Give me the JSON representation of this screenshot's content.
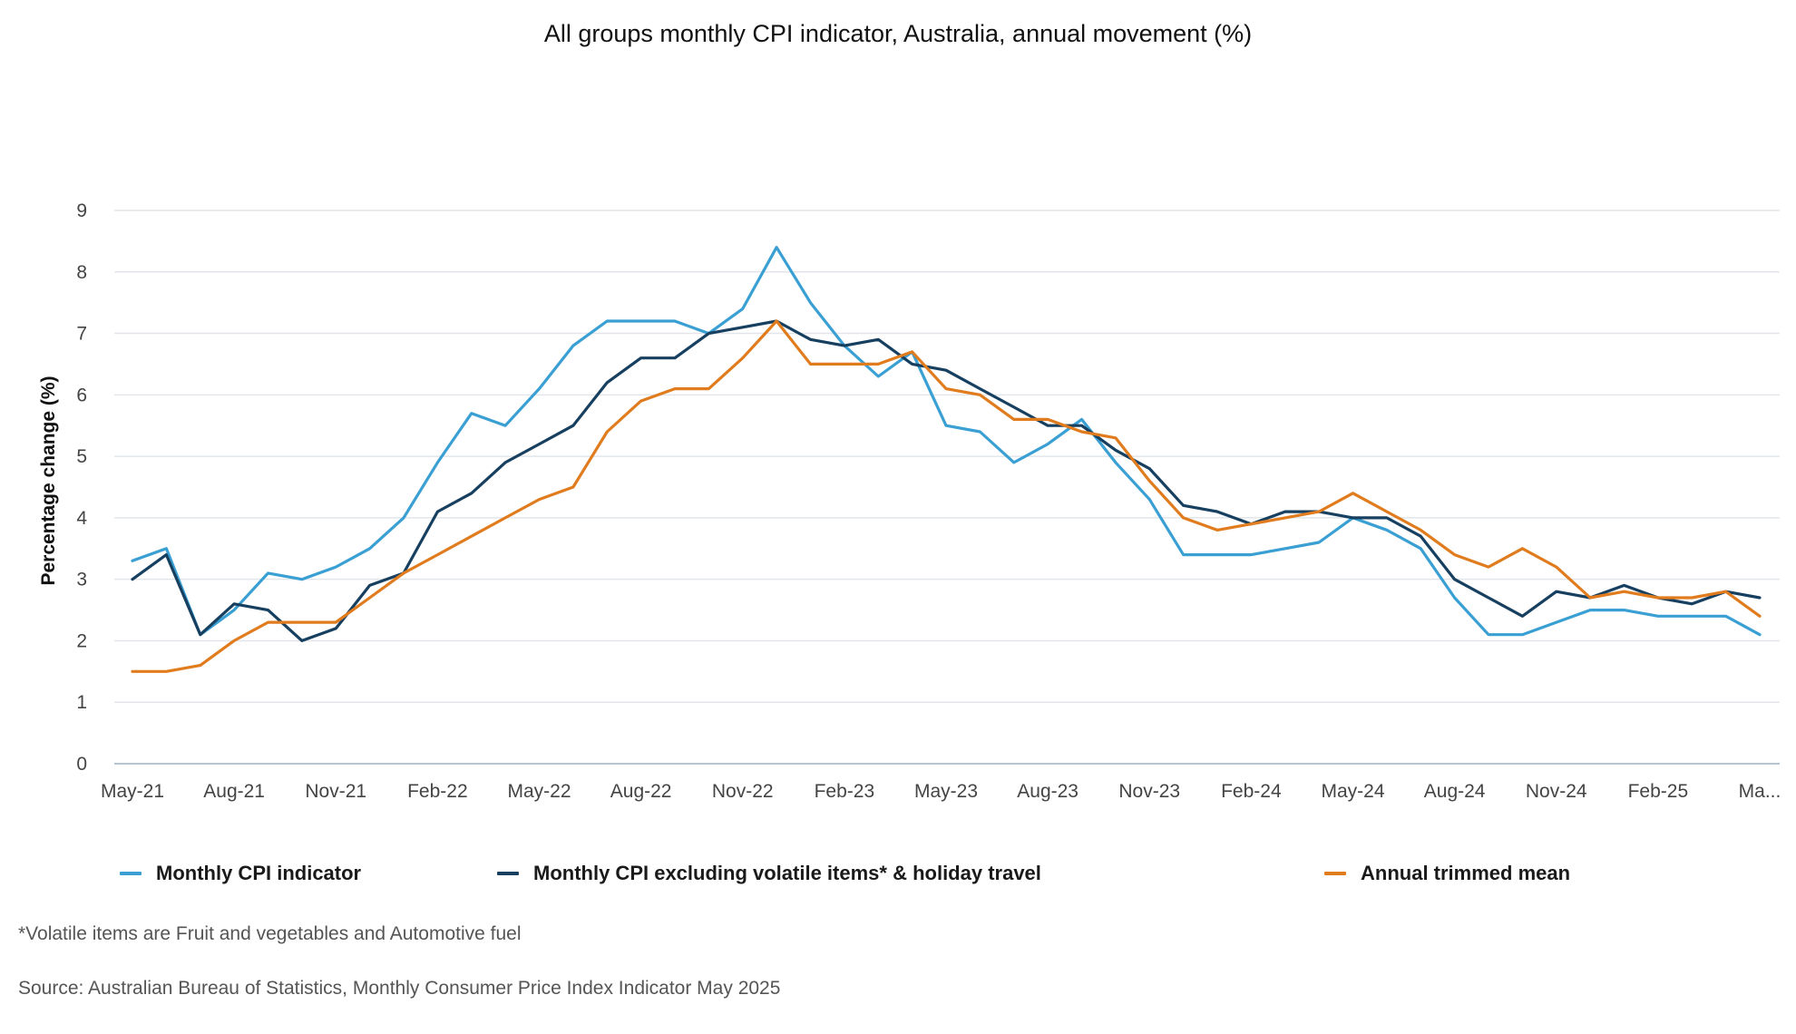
{
  "colors": {
    "monthly_cpi": "#3a9fd3",
    "excluding": "#173f5f",
    "trimmed_mean": "#e07c1e",
    "grid": "#e2e6ea",
    "axis": "#b7c6d3",
    "tick_text": "#444444"
  },
  "footnotes": {
    "volatile": "*Volatile items are Fruit and vegetables and Automotive fuel",
    "source": "Source: Australian Bureau of Statistics, Monthly Consumer Price Index Indicator May 2025"
  },
  "chart_data": {
    "type": "line",
    "title": "All groups monthly CPI indicator, Australia, annual movement (%)",
    "xlabel": "",
    "ylabel": "Percentage change (%)",
    "ylim": [
      0,
      9
    ],
    "yticks": [
      0,
      1,
      2,
      3,
      4,
      5,
      6,
      7,
      8,
      9
    ],
    "grid": true,
    "legend_position": "bottom",
    "x": [
      "May-21",
      "Jun-21",
      "Jul-21",
      "Aug-21",
      "Sep-21",
      "Oct-21",
      "Nov-21",
      "Dec-21",
      "Jan-22",
      "Feb-22",
      "Mar-22",
      "Apr-22",
      "May-22",
      "Jun-22",
      "Jul-22",
      "Aug-22",
      "Sep-22",
      "Oct-22",
      "Nov-22",
      "Dec-22",
      "Jan-23",
      "Feb-23",
      "Mar-23",
      "Apr-23",
      "May-23",
      "Jun-23",
      "Jul-23",
      "Aug-23",
      "Sep-23",
      "Oct-23",
      "Nov-23",
      "Dec-23",
      "Jan-24",
      "Feb-24",
      "Mar-24",
      "Apr-24",
      "May-24",
      "Jun-24",
      "Jul-24",
      "Aug-24",
      "Sep-24",
      "Oct-24",
      "Nov-24",
      "Dec-24",
      "Jan-25",
      "Feb-25",
      "Mar-25",
      "Apr-25",
      "May-25"
    ],
    "tick_labels": [
      "May-21",
      "Aug-21",
      "Nov-21",
      "Feb-22",
      "May-22",
      "Aug-22",
      "Nov-22",
      "Feb-23",
      "May-23",
      "Aug-23",
      "Nov-23",
      "Feb-24",
      "May-24",
      "Aug-24",
      "Nov-24",
      "Feb-25",
      "Ma..."
    ],
    "tick_indices": [
      0,
      3,
      6,
      9,
      12,
      15,
      18,
      21,
      24,
      27,
      30,
      33,
      36,
      39,
      42,
      45,
      48
    ],
    "series": [
      {
        "name": "Monthly CPI indicator",
        "values": [
          3.3,
          3.5,
          2.1,
          2.5,
          3.1,
          3.0,
          3.2,
          3.5,
          4.0,
          4.9,
          5.7,
          5.5,
          6.1,
          6.8,
          7.2,
          7.2,
          7.2,
          7.0,
          7.4,
          8.4,
          7.5,
          6.8,
          6.3,
          6.7,
          5.5,
          5.4,
          4.9,
          5.2,
          5.6,
          4.9,
          4.3,
          3.4,
          3.4,
          3.4,
          3.5,
          3.6,
          4.0,
          3.8,
          3.5,
          2.7,
          2.1,
          2.1,
          2.3,
          2.5,
          2.5,
          2.4,
          2.4,
          2.4,
          2.1
        ]
      },
      {
        "name": "Monthly CPI excluding volatile items* & holiday travel",
        "values": [
          3.0,
          3.4,
          2.1,
          2.6,
          2.5,
          2.0,
          2.2,
          2.9,
          3.1,
          4.1,
          4.4,
          4.9,
          5.2,
          5.5,
          6.2,
          6.6,
          6.6,
          7.0,
          7.1,
          7.2,
          6.9,
          6.8,
          6.9,
          6.5,
          6.4,
          6.1,
          5.8,
          5.5,
          5.5,
          5.1,
          4.8,
          4.2,
          4.1,
          3.9,
          4.1,
          4.1,
          4.0,
          4.0,
          3.7,
          3.0,
          2.7,
          2.4,
          2.8,
          2.7,
          2.9,
          2.7,
          2.6,
          2.8,
          2.7
        ]
      },
      {
        "name": "Annual trimmed mean",
        "values": [
          1.5,
          1.5,
          1.6,
          2.0,
          2.3,
          2.3,
          2.3,
          2.7,
          3.1,
          3.4,
          3.7,
          4.0,
          4.3,
          4.5,
          5.4,
          5.9,
          6.1,
          6.1,
          6.6,
          7.2,
          6.5,
          6.5,
          6.5,
          6.7,
          6.1,
          6.0,
          5.6,
          5.6,
          5.4,
          5.3,
          4.6,
          4.0,
          3.8,
          3.9,
          4.0,
          4.1,
          4.4,
          4.1,
          3.8,
          3.4,
          3.2,
          3.5,
          3.2,
          2.7,
          2.8,
          2.7,
          2.7,
          2.8,
          2.4
        ]
      }
    ]
  }
}
